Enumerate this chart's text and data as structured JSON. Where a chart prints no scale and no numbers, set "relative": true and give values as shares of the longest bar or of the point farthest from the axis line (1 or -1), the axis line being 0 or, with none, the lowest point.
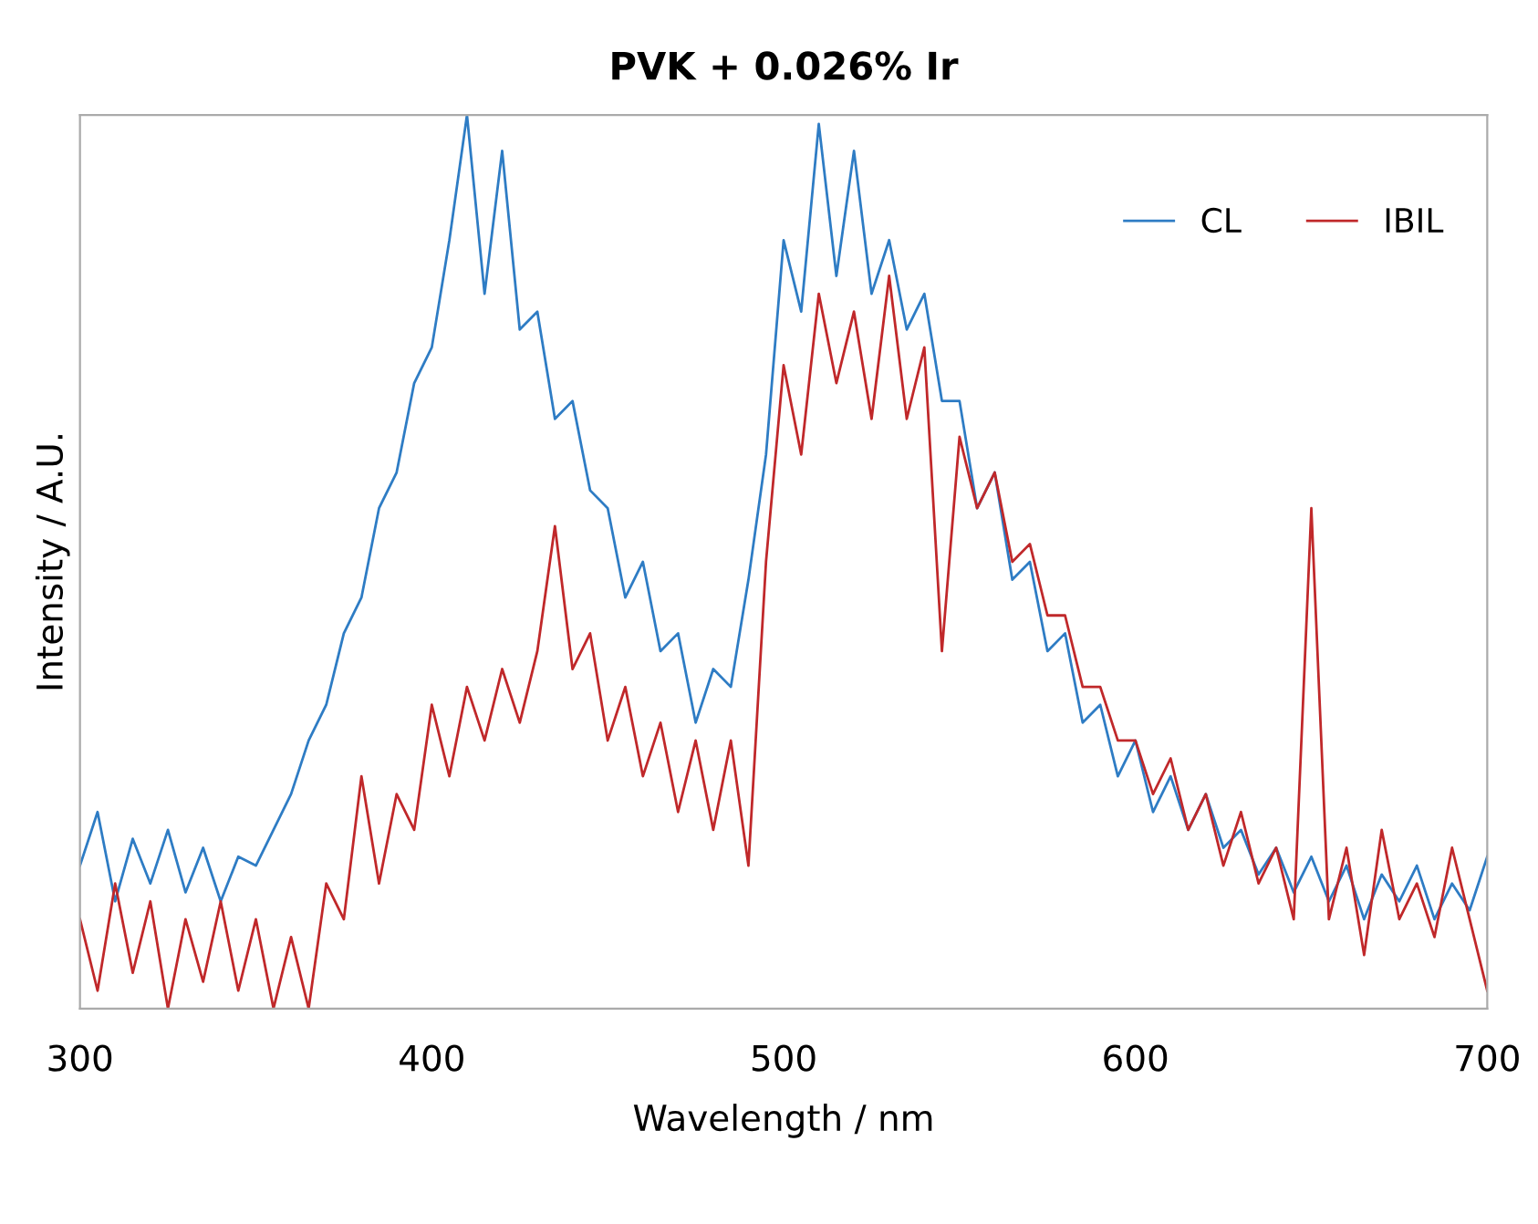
{
  "chart_data": {
    "type": "line",
    "title": "PVK + 0.026% Ir",
    "xlabel": "Wavelength / nm",
    "ylabel": "Intensity / A.U.",
    "relative": true,
    "xlim": [
      300,
      700
    ],
    "xticks": [
      300,
      400,
      500,
      600,
      700
    ],
    "tick_labels": "x",
    "grid": false,
    "legend": "top right",
    "marker": "none",
    "line_style": "solid",
    "x": [
      300,
      305,
      310,
      315,
      320,
      325,
      330,
      335,
      340,
      345,
      350,
      355,
      360,
      365,
      370,
      375,
      380,
      385,
      390,
      395,
      400,
      405,
      410,
      415,
      420,
      425,
      430,
      435,
      440,
      445,
      450,
      455,
      460,
      465,
      470,
      475,
      480,
      485,
      490,
      495,
      500,
      505,
      510,
      515,
      520,
      525,
      530,
      535,
      540,
      545,
      550,
      555,
      560,
      565,
      570,
      575,
      580,
      585,
      590,
      595,
      600,
      605,
      610,
      615,
      620,
      625,
      630,
      635,
      640,
      645,
      650,
      655,
      660,
      665,
      670,
      675,
      680,
      685,
      690,
      695,
      700
    ],
    "series": [
      {
        "name": "CL",
        "color": "#2e7cc4",
        "values": [
          0.16,
          0.22,
          0.12,
          0.19,
          0.14,
          0.2,
          0.13,
          0.18,
          0.12,
          0.17,
          0.16,
          0.2,
          0.24,
          0.3,
          0.34,
          0.42,
          0.46,
          0.56,
          0.6,
          0.7,
          0.74,
          0.86,
          1.0,
          0.8,
          0.96,
          0.76,
          0.78,
          0.66,
          0.68,
          0.58,
          0.56,
          0.46,
          0.5,
          0.4,
          0.42,
          0.32,
          0.38,
          0.36,
          0.48,
          0.62,
          0.86,
          0.78,
          0.99,
          0.82,
          0.96,
          0.8,
          0.86,
          0.76,
          0.8,
          0.68,
          0.68,
          0.56,
          0.6,
          0.48,
          0.5,
          0.4,
          0.42,
          0.32,
          0.34,
          0.26,
          0.3,
          0.22,
          0.26,
          0.2,
          0.24,
          0.18,
          0.2,
          0.15,
          0.18,
          0.13,
          0.17,
          0.12,
          0.16,
          0.1,
          0.15,
          0.12,
          0.16,
          0.1,
          0.14,
          0.11,
          0.17
        ]
      },
      {
        "name": "IBIL",
        "color": "#c0282a",
        "values": [
          0.1,
          0.02,
          0.14,
          0.04,
          0.12,
          0.0,
          0.1,
          0.03,
          0.12,
          0.02,
          0.1,
          0.0,
          0.08,
          0.0,
          0.14,
          0.1,
          0.26,
          0.14,
          0.24,
          0.2,
          0.34,
          0.26,
          0.36,
          0.3,
          0.38,
          0.32,
          0.4,
          0.54,
          0.38,
          0.42,
          0.3,
          0.36,
          0.26,
          0.32,
          0.22,
          0.3,
          0.2,
          0.3,
          0.16,
          0.5,
          0.72,
          0.62,
          0.8,
          0.7,
          0.78,
          0.66,
          0.82,
          0.66,
          0.74,
          0.4,
          0.64,
          0.56,
          0.6,
          0.5,
          0.52,
          0.44,
          0.44,
          0.36,
          0.36,
          0.3,
          0.3,
          0.24,
          0.28,
          0.2,
          0.24,
          0.16,
          0.22,
          0.14,
          0.18,
          0.1,
          0.56,
          0.1,
          0.18,
          0.06,
          0.2,
          0.1,
          0.14,
          0.08,
          0.18,
          0.1,
          0.02
        ]
      }
    ]
  }
}
